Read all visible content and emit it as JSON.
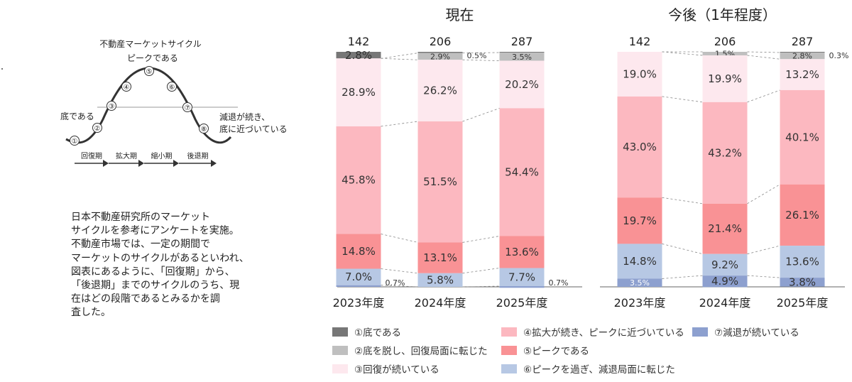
{
  "cycle": {
    "title": "不動産マーケットサイクル",
    "peak_label": "ピークである",
    "bottom_label": "底である",
    "decline_label_1": "減退が続き、",
    "decline_label_2": "底に近づいている",
    "phase_numbers": [
      "①",
      "②",
      "③",
      "④",
      "⑤",
      "⑥",
      "⑦",
      "⑧"
    ],
    "phases": [
      "回復期",
      "拡大期",
      "縮小期",
      "後退期"
    ]
  },
  "description": "日本不動産研究所のマーケット\nサイクルを参考にアンケートを実施。\n不動産市場では、一定の期間で\nマーケットのサイクルがあるといわれ、\n図表にあるように、「回復期」から、\n「後退期」までのサイクルのうち、現\n在はどの段階であるとみるかを調\n査した。",
  "legend": [
    {
      "label": "①底である",
      "color": "#777777"
    },
    {
      "label": "②底を脱し、回復局面に転じた",
      "color": "#bfbfbf"
    },
    {
      "label": "③回復が続いている",
      "color": "#fde8ee"
    },
    {
      "label": "④拡大が続き、ピークに近づいている",
      "color": "#fcb8c0"
    },
    {
      "label": "⑤ピークである",
      "color": "#f99295"
    },
    {
      "label": "⑥ピークを過ぎ、減退局面に転じた",
      "color": "#b7c8e4"
    },
    {
      "label": "⑦減退が続いている",
      "color": "#8da0cf"
    }
  ],
  "chart_data": [
    {
      "type": "bar",
      "stacked": true,
      "normalized": true,
      "title": "現在",
      "categories": [
        "2023年度",
        "2024年度",
        "2025年度"
      ],
      "totals": [
        "142",
        "206",
        "287"
      ],
      "series": [
        {
          "name": "①底である",
          "values": [
            2.8,
            0.5,
            0.3
          ],
          "labels": [
            "",
            "0.5%",
            ""
          ]
        },
        {
          "name": "②底を脱し、回復局面に転じた",
          "values": [
            0,
            2.9,
            3.5
          ],
          "labels": [
            "",
            "2.9%",
            "3.5%"
          ]
        },
        {
          "name": "③回復が続いている",
          "values": [
            28.9,
            26.2,
            20.2
          ],
          "labels": [
            "28.9%",
            "26.2%",
            "20.2%"
          ]
        },
        {
          "name": "④拡大が続き、ピークに近づいている",
          "values": [
            45.8,
            51.5,
            54.4
          ],
          "labels": [
            "45.8%",
            "51.5%",
            "54.4%"
          ]
        },
        {
          "name": "⑤ピークである",
          "values": [
            14.8,
            13.1,
            13.6
          ],
          "labels": [
            "14.8%",
            "13.1%",
            "13.6%"
          ]
        },
        {
          "name": "⑥ピークを過ぎ、減退局面に転じた",
          "values": [
            7.0,
            5.8,
            7.7
          ],
          "labels": [
            "7.0%",
            "5.8%",
            "7.7%"
          ]
        },
        {
          "name": "⑦減退が続いている",
          "values": [
            0.7,
            0,
            0.7
          ],
          "labels": [
            "0.7%",
            "",
            "0.7%"
          ]
        }
      ],
      "extra_labels": [
        "2.8%"
      ]
    },
    {
      "type": "bar",
      "stacked": true,
      "normalized": true,
      "title": "今後（1年程度）",
      "categories": [
        "2023年度",
        "2024年度",
        "2025年度"
      ],
      "totals": [
        "142",
        "206",
        "287"
      ],
      "series": [
        {
          "name": "①底である",
          "values": [
            0,
            0,
            0.3
          ],
          "labels": [
            "",
            "",
            "0.3%"
          ]
        },
        {
          "name": "②底を脱し、回復局面に転じた",
          "values": [
            0,
            1.5,
            2.8
          ],
          "labels": [
            "",
            "1.5%",
            "2.8%"
          ]
        },
        {
          "name": "③回復が続いている",
          "values": [
            19.0,
            19.9,
            13.2
          ],
          "labels": [
            "19.0%",
            "19.9%",
            "13.2%"
          ]
        },
        {
          "name": "④拡大が続き、ピークに近づいている",
          "values": [
            43.0,
            43.2,
            40.1
          ],
          "labels": [
            "43.0%",
            "43.2%",
            "40.1%"
          ]
        },
        {
          "name": "⑤ピークである",
          "values": [
            19.7,
            21.4,
            26.1
          ],
          "labels": [
            "19.7%",
            "21.4%",
            "26.1%"
          ]
        },
        {
          "name": "⑥ピークを過ぎ、減退局面に転じた",
          "values": [
            14.8,
            9.2,
            13.6
          ],
          "labels": [
            "14.8%",
            "9.2%",
            "13.6%"
          ]
        },
        {
          "name": "⑦減退が続いている",
          "values": [
            3.5,
            4.9,
            3.8
          ],
          "labels": [
            "3.5%",
            "4.9%",
            "3.8%"
          ]
        }
      ]
    }
  ]
}
